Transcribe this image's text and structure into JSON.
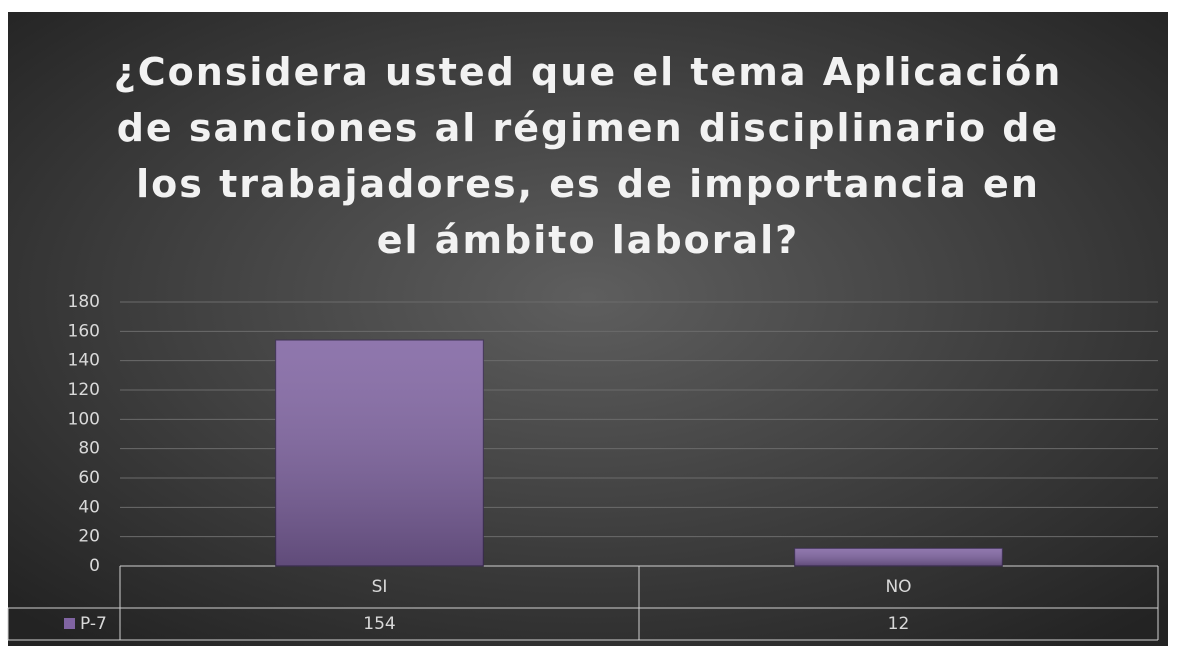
{
  "chart_data": {
    "type": "bar",
    "title": "¿Considera usted que el tema Aplicación de sanciones al régimen disciplinario de los trabajadores, es de importancia en el ámbito laboral?",
    "categories": [
      "SI",
      "NO"
    ],
    "series": [
      {
        "name": "P-7",
        "color": "#8064a2",
        "values": [
          154,
          12
        ]
      }
    ],
    "ylim": [
      0,
      180
    ],
    "yticks": [
      0,
      20,
      40,
      60,
      80,
      100,
      120,
      140,
      160,
      180
    ],
    "grid": true
  }
}
